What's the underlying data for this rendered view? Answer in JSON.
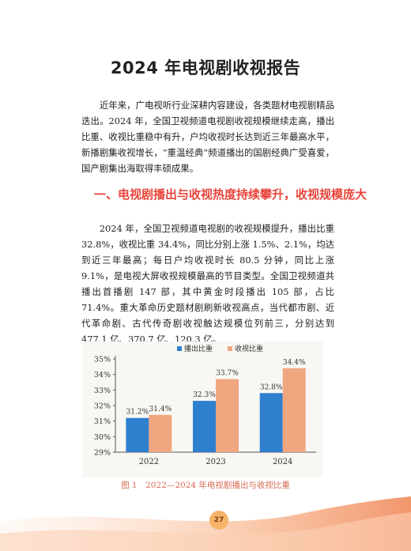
{
  "page": {
    "title": "2024 年电视剧收视报告",
    "intro": "近年来，广电视听行业深耕内容建设，各类题材电视剧精品迭出。2024 年，全国卫视频道电视剧收视规模继续走高，播出比重、收视比重稳中有升，户均收视时长达到近三年最高水平，新播剧集收视增长，“重温经典”频道播出的国剧经典广受喜爱，国产剧集出海取得丰硕成果。",
    "section_heading": "一、电视剧播出与收视热度持续攀升，收视规模庞大",
    "body": "2024 年，全国卫视频道电视剧的收视规模提升，播出比重 32.8%，收视比重 34.4%，同比分别上涨 1.5%、2.1%，均达到近三年最高；每日户均收视时长 80.5 分钟，同比上涨 9.1%，是电视大屏收视规模最高的节目类型。全国卫视频道共播出首播剧 147 部，其中黄金时段播出 105 部，占比 71.4%。重大革命历史题材剧刷新收视高点，当代都市剧、近代革命剧、古代传奇剧收视触达规模位列前三，分别达到 477.1 亿、370.7 亿、120.3 亿。",
    "caption": "图 1　2022—2024 年电视剧播出与收视比重",
    "page_number": "27"
  },
  "colors": {
    "accent": "#e8443a",
    "series_broadcast": "#2f7fcf",
    "series_viewing": "#f0a67f",
    "chart_bg": "#f8f7f3"
  },
  "chart_data": {
    "type": "bar",
    "categories": [
      "2022",
      "2023",
      "2024"
    ],
    "series": [
      {
        "name": "播出比重",
        "values": [
          31.2,
          32.3,
          32.8
        ],
        "labels": [
          "31.2%",
          "32.3%",
          "32.8%"
        ]
      },
      {
        "name": "收视比重",
        "values": [
          31.4,
          33.7,
          34.4
        ],
        "labels": [
          "31.4%",
          "33.7%",
          "34.4%"
        ]
      }
    ],
    "yticks": [
      "29%",
      "30%",
      "31%",
      "32%",
      "33%",
      "34%",
      "35%"
    ],
    "ylim": [
      29,
      35
    ],
    "legend": "top-center",
    "grid": false
  }
}
